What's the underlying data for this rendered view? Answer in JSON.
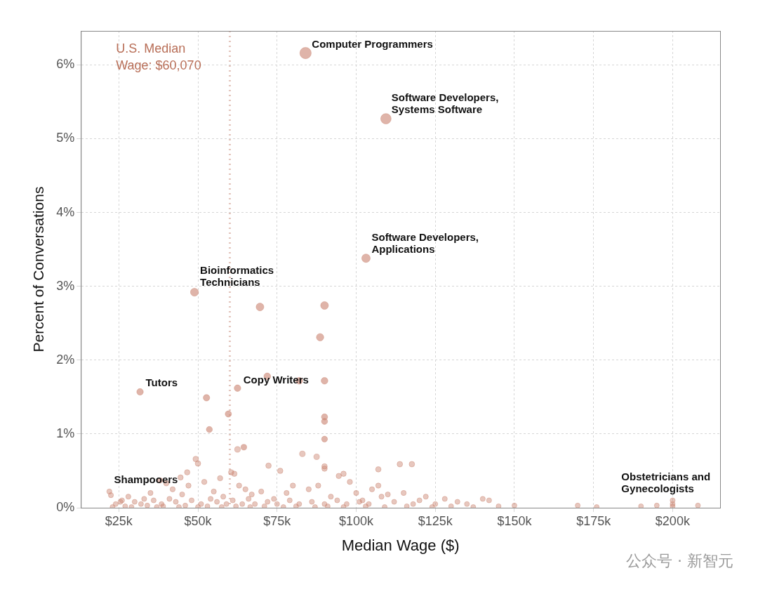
{
  "chart_data": {
    "type": "scatter",
    "x_label": "Median Wage ($)",
    "y_label": "Percent of Conversations",
    "xlim": [
      13000,
      215000
    ],
    "ylim": [
      0,
      6.46
    ],
    "xticks": [
      {
        "value": 25000,
        "label": "$25k"
      },
      {
        "value": 50000,
        "label": "$50k"
      },
      {
        "value": 75000,
        "label": "$75k"
      },
      {
        "value": 100000,
        "label": "$100k"
      },
      {
        "value": 125000,
        "label": "$125k"
      },
      {
        "value": 150000,
        "label": "$150k"
      },
      {
        "value": 175000,
        "label": "$175k"
      },
      {
        "value": 200000,
        "label": "$200k"
      }
    ],
    "yticks": [
      {
        "value": 0,
        "label": "0%"
      },
      {
        "value": 1,
        "label": "1%"
      },
      {
        "value": 2,
        "label": "2%"
      },
      {
        "value": 3,
        "label": "3%"
      },
      {
        "value": 4,
        "label": "4%"
      },
      {
        "value": 5,
        "label": "5%"
      },
      {
        "value": 6,
        "label": "6%"
      }
    ],
    "grid": true,
    "color": "#c9826f",
    "marker": "circle",
    "x": [
      84000,
      109400,
      103100,
      48900,
      31700,
      71900,
      25500,
      200000,
      69600,
      90000,
      88600,
      90000,
      82000,
      62500,
      52700,
      53600,
      59600,
      90000,
      90000,
      90000,
      64500,
      62500,
      83000,
      87500,
      49300,
      50000,
      90000,
      90000,
      113800,
      117600,
      107000,
      72300,
      96000,
      94500,
      60500,
      61500,
      46600,
      44500,
      38000,
      40000,
      22000,
      22500,
      28000,
      33000,
      35000,
      42000,
      45000,
      47000,
      52000,
      55000,
      57000,
      58000,
      63000,
      65000,
      67000,
      70000,
      74000,
      76000,
      78000,
      80000,
      85000,
      88000,
      92000,
      98000,
      100000,
      102000,
      105000,
      108000,
      110000,
      112000,
      115000,
      120000,
      122000,
      125000,
      128000,
      132000,
      135000,
      140000,
      142000,
      150000,
      170000,
      176000,
      190000,
      195000,
      200000,
      200000,
      208000,
      24000,
      26000,
      30000,
      32000,
      36000,
      38500,
      41000,
      43000,
      48000,
      51000,
      54000,
      56000,
      59000,
      61000,
      64000,
      66000,
      68000,
      72000,
      75000,
      79000,
      82000,
      86000,
      90000,
      94000,
      97000,
      101000,
      104000,
      107000,
      118000,
      130000,
      137000,
      145000,
      23000,
      27000,
      29000,
      34000,
      37000,
      39000,
      44000,
      46000,
      50000,
      53000,
      57500,
      62000,
      66500,
      71000,
      77000,
      81000,
      87000,
      91000,
      96000,
      103000,
      109000,
      116000,
      124000
    ],
    "y": [
      6.16,
      5.27,
      3.38,
      2.92,
      1.57,
      1.78,
      0.08,
      0.1,
      2.72,
      2.74,
      2.31,
      1.72,
      1.72,
      1.62,
      1.49,
      1.06,
      1.27,
      1.23,
      1.17,
      0.93,
      0.82,
      0.79,
      0.73,
      0.69,
      0.66,
      0.6,
      0.56,
      0.53,
      0.59,
      0.59,
      0.52,
      0.57,
      0.46,
      0.43,
      0.48,
      0.46,
      0.48,
      0.41,
      0.37,
      0.33,
      0.22,
      0.17,
      0.15,
      0.12,
      0.2,
      0.25,
      0.18,
      0.3,
      0.35,
      0.22,
      0.4,
      0.15,
      0.3,
      0.25,
      0.18,
      0.22,
      0.12,
      0.5,
      0.2,
      0.3,
      0.25,
      0.3,
      0.15,
      0.35,
      0.2,
      0.1,
      0.25,
      0.15,
      0.18,
      0.08,
      0.2,
      0.1,
      0.15,
      0.05,
      0.12,
      0.08,
      0.05,
      0.12,
      0.1,
      0.03,
      0.03,
      0.01,
      0.02,
      0.03,
      0.05,
      0.02,
      0.03,
      0.05,
      0.1,
      0.08,
      0.05,
      0.1,
      0.05,
      0.12,
      0.08,
      0.1,
      0.05,
      0.12,
      0.08,
      0.05,
      0.1,
      0.05,
      0.12,
      0.05,
      0.08,
      0.05,
      0.1,
      0.05,
      0.08,
      0.05,
      0.1,
      0.05,
      0.08,
      0.05,
      0.3,
      0.05,
      0.02,
      0.01,
      0.02,
      0.01,
      0.02,
      0.01,
      0.03,
      0.01,
      0.02,
      0.01,
      0.03,
      0.01,
      0.02,
      0.01,
      0.02,
      0.01,
      0.02,
      0.01,
      0.02,
      0.01,
      0.02,
      0.01,
      0.02,
      0.01,
      0.02,
      0.01
    ],
    "annotations": [
      {
        "text": [
          "Computer Programmers"
        ],
        "x": 84000,
        "y": 6.16
      },
      {
        "text": [
          "Software Developers,",
          "Systems Software"
        ],
        "x": 109400,
        "y": 5.27
      },
      {
        "text": [
          "Software Developers,",
          "Applications"
        ],
        "x": 103100,
        "y": 3.38
      },
      {
        "text": [
          "Bioinformatics",
          "Technicians"
        ],
        "x": 48900,
        "y": 2.92
      },
      {
        "text": [
          "Tutors"
        ],
        "x": 31700,
        "y": 1.57
      },
      {
        "text": [
          "Copy Writers"
        ],
        "x": 71900,
        "y": 1.78
      },
      {
        "text": [
          "Shampooers"
        ],
        "x": 25500,
        "y": 0.08
      },
      {
        "text": [
          "Obstetricians and",
          "Gynecologists"
        ],
        "x": 200000,
        "y": 0.1
      }
    ],
    "reference_line": {
      "x": 60070,
      "label": [
        "U.S. Median",
        "Wage: $60,070"
      ],
      "color": "#b86e57"
    },
    "watermark": "公众号 · 新智元"
  }
}
